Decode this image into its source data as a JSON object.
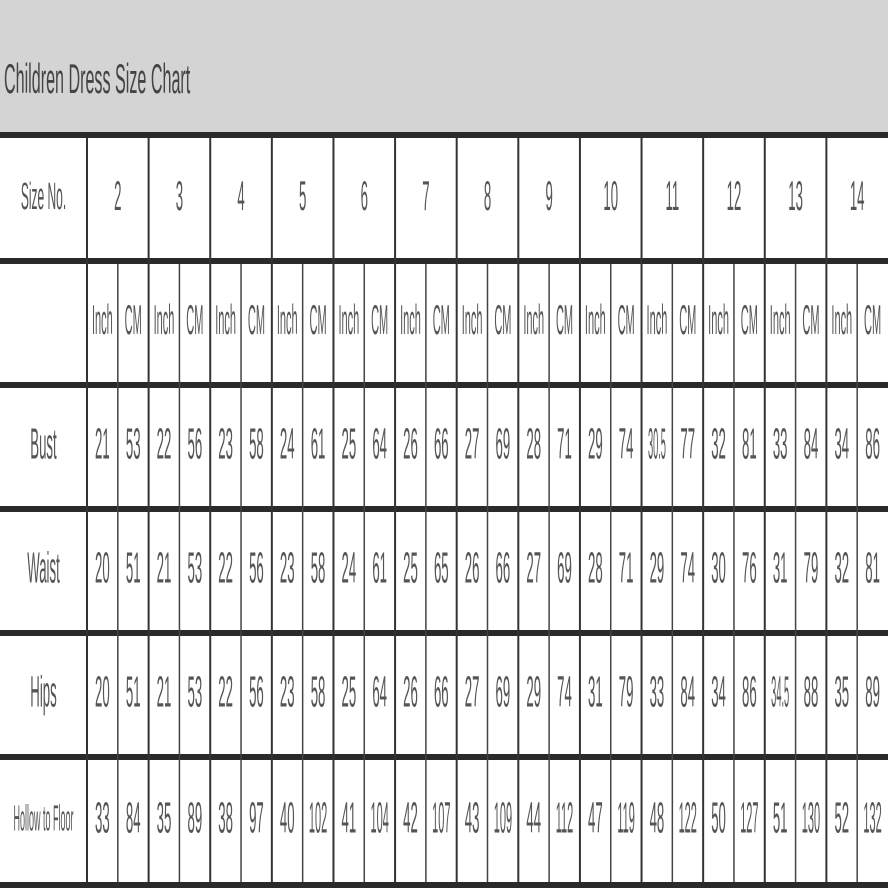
{
  "title": "Children Dress Size Chart",
  "table": {
    "header_label": "Size No.",
    "sizes": [
      2,
      3,
      4,
      5,
      6,
      7,
      8,
      9,
      10,
      11,
      12,
      13,
      14
    ],
    "units": [
      "Inch",
      "CM",
      "Inch",
      "CM",
      "Inch",
      "CM",
      "Inch",
      "CM",
      "Inch",
      "CM",
      "Inch",
      "CM",
      "Inch",
      "CM",
      "Inch",
      "CM",
      "Inch",
      "CM",
      "Inch",
      "CM",
      "Inch",
      "CM",
      "Inch",
      "CM",
      "Inch",
      "CM"
    ],
    "rows": [
      {
        "label": "Bust",
        "values": [
          21,
          53,
          22,
          56,
          23,
          58,
          24,
          61,
          25,
          64,
          26,
          66,
          27,
          69,
          28,
          71,
          29,
          74,
          30.5,
          77,
          32,
          81,
          33,
          84,
          34,
          86
        ]
      },
      {
        "label": "Waist",
        "values": [
          20,
          51,
          21,
          53,
          22,
          56,
          23,
          58,
          24,
          61,
          25,
          65,
          26,
          66,
          27,
          69,
          28,
          71,
          29,
          74,
          30,
          76,
          31,
          79,
          32,
          81
        ]
      },
      {
        "label": "Hips",
        "values": [
          20,
          51,
          21,
          53,
          22,
          56,
          23,
          58,
          25,
          64,
          26,
          66,
          27,
          69,
          29,
          74,
          31,
          79,
          33,
          84,
          34,
          86,
          34.5,
          88,
          35,
          89
        ]
      },
      {
        "label": "Hollow to Floor",
        "values": [
          33,
          84,
          35,
          89,
          38,
          97,
          40,
          102,
          41,
          104,
          42,
          107,
          43,
          109,
          44,
          112,
          47,
          119,
          48,
          122,
          50,
          127,
          51,
          130,
          52,
          132
        ]
      }
    ]
  }
}
